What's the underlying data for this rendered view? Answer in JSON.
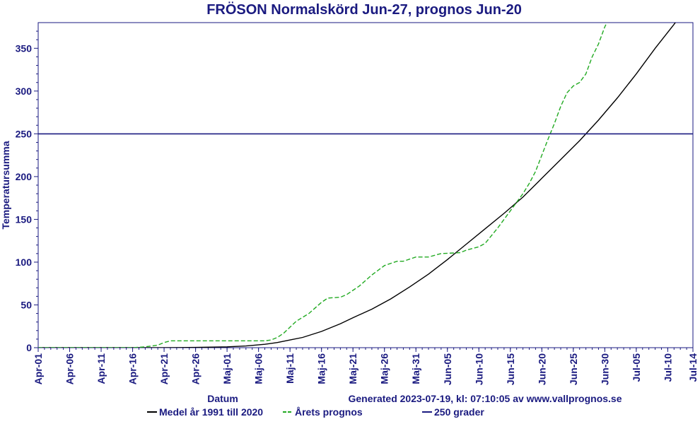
{
  "chart_data": {
    "type": "line",
    "title": "FRÖSON Normalskörd Jun-27, prognos Jun-20",
    "xlabel": "Datum",
    "ylabel": "Temperatursumma",
    "generated_text": "Generated 2023-07-19, kl: 07:10:05 av www.vallprognos.se",
    "x_start": "Apr-01",
    "x_end": "Jul-14",
    "ylim": [
      0,
      380
    ],
    "y_ticks": [
      0,
      50,
      100,
      150,
      200,
      250,
      300,
      350
    ],
    "x_ticks": [
      {
        "day": 0,
        "label": "Apr-01"
      },
      {
        "day": 5,
        "label": "Apr-06"
      },
      {
        "day": 10,
        "label": "Apr-11"
      },
      {
        "day": 15,
        "label": "Apr-16"
      },
      {
        "day": 20,
        "label": "Apr-21"
      },
      {
        "day": 25,
        "label": "Apr-26"
      },
      {
        "day": 30,
        "label": "Maj-01"
      },
      {
        "day": 35,
        "label": "Maj-06"
      },
      {
        "day": 40,
        "label": "Maj-11"
      },
      {
        "day": 45,
        "label": "Maj-16"
      },
      {
        "day": 50,
        "label": "Maj-21"
      },
      {
        "day": 55,
        "label": "Maj-26"
      },
      {
        "day": 60,
        "label": "Maj-31"
      },
      {
        "day": 65,
        "label": "Jun-05"
      },
      {
        "day": 70,
        "label": "Jun-10"
      },
      {
        "day": 75,
        "label": "Jun-15"
      },
      {
        "day": 80,
        "label": "Jun-20"
      },
      {
        "day": 85,
        "label": "Jun-25"
      },
      {
        "day": 90,
        "label": "Jun-30"
      },
      {
        "day": 95,
        "label": "Jul-05"
      },
      {
        "day": 100,
        "label": "Jul-10"
      },
      {
        "day": 104,
        "label": "Jul-14"
      }
    ],
    "series": [
      {
        "name": "Medel år 1991 till 2020",
        "color": "#000000",
        "style": "solid",
        "points": [
          [
            0,
            0
          ],
          [
            10,
            0
          ],
          [
            20,
            0
          ],
          [
            25,
            0.3
          ],
          [
            30,
            1
          ],
          [
            33,
            2
          ],
          [
            36,
            4
          ],
          [
            38,
            6
          ],
          [
            40,
            9
          ],
          [
            42,
            12
          ],
          [
            45,
            19
          ],
          [
            48,
            28
          ],
          [
            50,
            35
          ],
          [
            53,
            45
          ],
          [
            56,
            57
          ],
          [
            59,
            71
          ],
          [
            62,
            86
          ],
          [
            65,
            103
          ],
          [
            68,
            121
          ],
          [
            71,
            139
          ],
          [
            74,
            157
          ],
          [
            77,
            176
          ],
          [
            80,
            198
          ],
          [
            83,
            220
          ],
          [
            86,
            242
          ],
          [
            89,
            266
          ],
          [
            92,
            292
          ],
          [
            95,
            320
          ],
          [
            98,
            350
          ],
          [
            101,
            378
          ],
          [
            103,
            398
          ]
        ]
      },
      {
        "name": "Årets prognos",
        "color": "#22aa22",
        "style": "dashed",
        "points": [
          [
            0,
            0
          ],
          [
            15,
            0
          ],
          [
            17,
            1
          ],
          [
            19,
            3
          ],
          [
            20,
            6
          ],
          [
            21,
            8
          ],
          [
            23,
            8
          ],
          [
            30,
            8
          ],
          [
            36,
            8
          ],
          [
            37,
            9
          ],
          [
            38,
            12
          ],
          [
            39,
            17
          ],
          [
            40,
            24
          ],
          [
            41,
            31
          ],
          [
            43,
            40
          ],
          [
            45,
            53
          ],
          [
            46,
            58
          ],
          [
            48,
            59
          ],
          [
            49,
            62
          ],
          [
            51,
            72
          ],
          [
            53,
            85
          ],
          [
            55,
            96
          ],
          [
            57,
            101
          ],
          [
            58,
            101
          ],
          [
            60,
            106
          ],
          [
            62,
            106
          ],
          [
            64,
            110
          ],
          [
            67,
            111
          ],
          [
            68,
            114
          ],
          [
            70,
            118
          ],
          [
            71,
            122
          ],
          [
            72,
            131
          ],
          [
            73,
            140
          ],
          [
            75,
            160
          ],
          [
            76,
            170
          ],
          [
            77,
            180
          ],
          [
            78,
            192
          ],
          [
            79,
            206
          ],
          [
            80,
            225
          ],
          [
            81,
            244
          ],
          [
            82,
            262
          ],
          [
            83,
            282
          ],
          [
            84,
            298
          ],
          [
            85,
            306
          ],
          [
            86,
            310
          ],
          [
            87,
            320
          ],
          [
            88,
            340
          ],
          [
            89,
            355
          ],
          [
            90,
            375
          ],
          [
            91,
            390
          ],
          [
            92,
            398
          ],
          [
            93,
            405
          ]
        ]
      },
      {
        "name": "250 grader",
        "color": "#1a1a80",
        "style": "solid",
        "points": [
          [
            0,
            250
          ],
          [
            104,
            250
          ]
        ]
      }
    ],
    "legend": [
      {
        "label": "Medel år 1991 till 2020",
        "color": "#000000"
      },
      {
        "label": "Årets prognos",
        "color": "#22aa22"
      },
      {
        "label": "250 grader",
        "color": "#1a1a80"
      }
    ],
    "legend_position": "bottom",
    "grid": false
  }
}
